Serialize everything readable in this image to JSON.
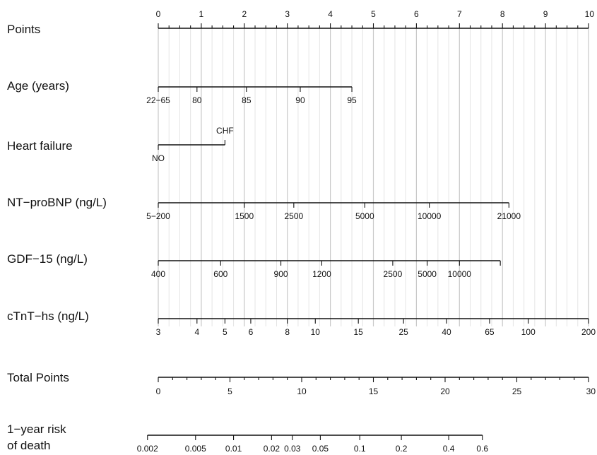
{
  "chart_data": {
    "type": "nomogram",
    "grid": true,
    "points_axis": {
      "label": "Points",
      "range": [
        0,
        10
      ],
      "major_ticks": [
        0,
        1,
        2,
        3,
        4,
        5,
        6,
        7,
        8,
        9,
        10
      ],
      "minor_step": 0.25
    },
    "predictors": [
      {
        "label": "Age (years)",
        "label_position": "below",
        "ticks": [
          {
            "label": "22−65",
            "points": 0
          },
          {
            "label": "80",
            "points": 0.9
          },
          {
            "label": "85",
            "points": 2.05
          },
          {
            "label": "90",
            "points": 3.3
          },
          {
            "label": "95",
            "points": 4.5
          }
        ]
      },
      {
        "label": "Heart failure",
        "label_position": "alternating",
        "ticks": [
          {
            "label": "NO",
            "points": 0,
            "side": "below"
          },
          {
            "label": "CHF",
            "points": 1.55,
            "side": "above"
          }
        ]
      },
      {
        "label": "NT−proBNP (ng/L)",
        "label_position": "below",
        "ticks": [
          {
            "label": "5−200",
            "points": 0
          },
          {
            "label": "1500",
            "points": 2.0
          },
          {
            "label": "2500",
            "points": 3.15
          },
          {
            "label": "5000",
            "points": 4.8
          },
          {
            "label": "10000",
            "points": 6.3
          },
          {
            "label": "21000",
            "points": 8.15
          }
        ]
      },
      {
        "label": "GDF−15 (ng/L)",
        "label_position": "below",
        "ticks": [
          {
            "label": "400",
            "points": 0
          },
          {
            "label": "600",
            "points": 1.45
          },
          {
            "label": "900",
            "points": 2.85
          },
          {
            "label": "1200",
            "points": 3.8
          },
          {
            "label": "2500",
            "points": 5.45
          },
          {
            "label": "5000",
            "points": 6.25
          },
          {
            "label": "10000",
            "points": 7.0
          },
          {
            "label": "",
            "points": 7.95
          }
        ]
      },
      {
        "label": "cTnT−hs (ng/L)",
        "label_position": "below",
        "ticks": [
          {
            "label": "3",
            "points": 0
          },
          {
            "label": "4",
            "points": 0.9
          },
          {
            "label": "5",
            "points": 1.55
          },
          {
            "label": "6",
            "points": 2.15
          },
          {
            "label": "8",
            "points": 3.0
          },
          {
            "label": "10",
            "points": 3.65
          },
          {
            "label": "15",
            "points": 4.65
          },
          {
            "label": "25",
            "points": 5.7
          },
          {
            "label": "40",
            "points": 6.7
          },
          {
            "label": "65",
            "points": 7.7
          },
          {
            "label": "100",
            "points": 8.6
          },
          {
            "label": "200",
            "points": 10.0
          }
        ]
      }
    ],
    "total_points_axis": {
      "label": "Total Points",
      "range": [
        0,
        30
      ],
      "major_ticks": [
        0,
        5,
        10,
        15,
        20,
        25,
        30
      ],
      "minor_step": 1
    },
    "risk_axis": {
      "label_lines": [
        "1−year risk",
        "of death"
      ],
      "ticks": [
        {
          "label": "0.002",
          "total": -0.75
        },
        {
          "label": "0.005",
          "total": 2.6
        },
        {
          "label": "0.01",
          "total": 5.25
        },
        {
          "label": "0.02",
          "total": 7.9
        },
        {
          "label": "0.03",
          "total": 9.35
        },
        {
          "label": "0.05",
          "total": 11.3
        },
        {
          "label": "0.1",
          "total": 14.05
        },
        {
          "label": "0.2",
          "total": 16.95
        },
        {
          "label": "0.4",
          "total": 20.25
        },
        {
          "label": "0.6",
          "total": 22.6
        }
      ]
    }
  }
}
